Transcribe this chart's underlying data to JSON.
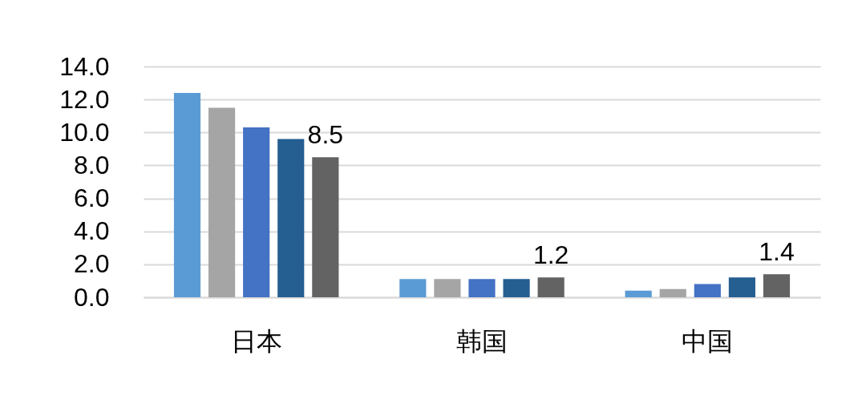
{
  "chart_data": {
    "type": "bar",
    "categories": [
      "日本",
      "韩国",
      "中国"
    ],
    "series": [
      {
        "color": "#5b9bd5",
        "values": [
          12.4,
          1.1,
          0.4
        ]
      },
      {
        "color": "#a5a5a5",
        "values": [
          11.5,
          1.1,
          0.5
        ]
      },
      {
        "color": "#4472c4",
        "values": [
          10.3,
          1.1,
          0.8
        ]
      },
      {
        "color": "#255e91",
        "values": [
          9.6,
          1.1,
          1.2
        ]
      },
      {
        "color": "#636363",
        "values": [
          8.5,
          1.2,
          1.4
        ],
        "value_labels": [
          "8.5",
          "1.2",
          "1.4"
        ]
      }
    ],
    "ylim": [
      0,
      14
    ],
    "yticks": [
      {
        "value": 0,
        "label": "0.0"
      },
      {
        "value": 2,
        "label": "2.0"
      },
      {
        "value": 4,
        "label": "4.0"
      },
      {
        "value": 6,
        "label": "6.0"
      },
      {
        "value": 8,
        "label": "8.0"
      },
      {
        "value": 10,
        "label": "10.0"
      },
      {
        "value": 12,
        "label": "12.0"
      },
      {
        "value": 14,
        "label": "14.0"
      }
    ],
    "grid": "y"
  }
}
